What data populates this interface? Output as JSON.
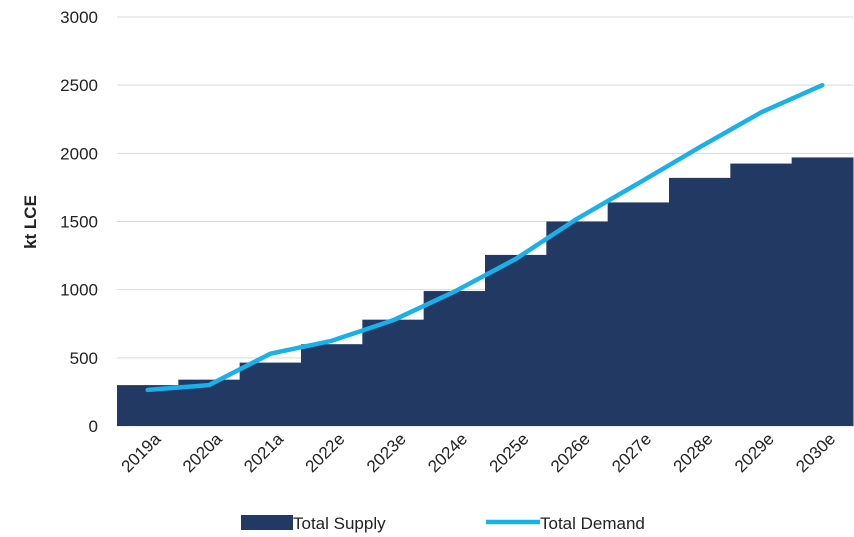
{
  "chart_data": {
    "type": "bar",
    "categories": [
      "2019a",
      "2020a",
      "2021a",
      "2022e",
      "2023e",
      "2024e",
      "2025e",
      "2026e",
      "2027e",
      "2028e",
      "2029e",
      "2030e"
    ],
    "series": [
      {
        "name": "Total Supply",
        "kind": "bar",
        "color": "#223A63",
        "values": [
          300,
          340,
          465,
          600,
          780,
          990,
          1255,
          1500,
          1640,
          1820,
          1925,
          1970
        ]
      },
      {
        "name": "Total Demand",
        "kind": "line",
        "color": "#1AB0EA",
        "values": [
          265,
          300,
          530,
          625,
          775,
          985,
          1225,
          1520,
          1780,
          2045,
          2300,
          2500
        ]
      }
    ],
    "ylabel": "kt  LCE",
    "ylim": [
      0,
      3000
    ],
    "yticks": [
      0,
      500,
      1000,
      1500,
      2000,
      2500,
      3000
    ],
    "grid": true,
    "legend": "bottom"
  }
}
